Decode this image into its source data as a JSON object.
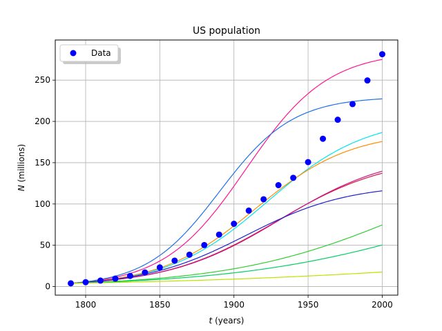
{
  "chart_data": {
    "type": "scatter",
    "title": "US population",
    "xlabel_var": "t",
    "xlabel_unit": " (years)",
    "ylabel_var": "N",
    "ylabel_unit": " (millions)",
    "xlim": [
      1779.5,
      2010.5
    ],
    "ylim": [
      -10.4,
      298.6
    ],
    "xticks": [
      1800,
      1850,
      1900,
      1950,
      2000
    ],
    "yticks": [
      0,
      50,
      100,
      150,
      200,
      250
    ],
    "grid": true,
    "legend_position": "upper-left",
    "legend_entry": "Data",
    "marker_color": "#0000ff",
    "series": [
      {
        "name": "Data",
        "x": [
          1790,
          1800,
          1810,
          1820,
          1830,
          1840,
          1850,
          1860,
          1870,
          1880,
          1890,
          1900,
          1910,
          1920,
          1930,
          1940,
          1950,
          1960,
          1970,
          1980,
          1990,
          2000
        ],
        "y": [
          3.9,
          5.3,
          7.2,
          9.6,
          12.9,
          17.1,
          23.2,
          31.4,
          38.6,
          50.2,
          62.9,
          76.0,
          92.0,
          105.7,
          122.8,
          131.7,
          150.7,
          179.0,
          202.0,
          221.0,
          249.6,
          281.4
        ]
      }
    ],
    "curves": [
      {
        "color": "#ff1493",
        "K": 285,
        "r": 0.0362,
        "t0": 1790,
        "N0": 3.9
      },
      {
        "color": "#1f6fe6",
        "K": 230,
        "r": 0.0405,
        "t0": 1790,
        "N0": 3.9
      },
      {
        "color": "#00e5ee",
        "K": 205,
        "r": 0.0298,
        "t0": 1790,
        "N0": 3.9
      },
      {
        "color": "#ff8c00",
        "K": 188,
        "r": 0.031,
        "t0": 1790,
        "N0": 3.9
      },
      {
        "color": "#dc143c",
        "K": 158,
        "r": 0.0265,
        "t0": 1790,
        "N0": 3.9
      },
      {
        "color": "#c71585",
        "K": 163,
        "r": 0.0262,
        "t0": 1790,
        "N0": 3.9
      },
      {
        "color": "#2020d0",
        "K": 124,
        "r": 0.029,
        "t0": 1790,
        "N0": 3.9
      },
      {
        "color": "#32cd32",
        "K": 180,
        "r": 0.0165,
        "t0": 1790,
        "N0": 3.9
      },
      {
        "color": "#00d060",
        "K": 150,
        "r": 0.014,
        "t0": 1790,
        "N0": 3.9
      },
      {
        "color": "#c0e000",
        "K": 60,
        "r": 0.0085,
        "t0": 1790,
        "N0": 3.9
      }
    ]
  }
}
